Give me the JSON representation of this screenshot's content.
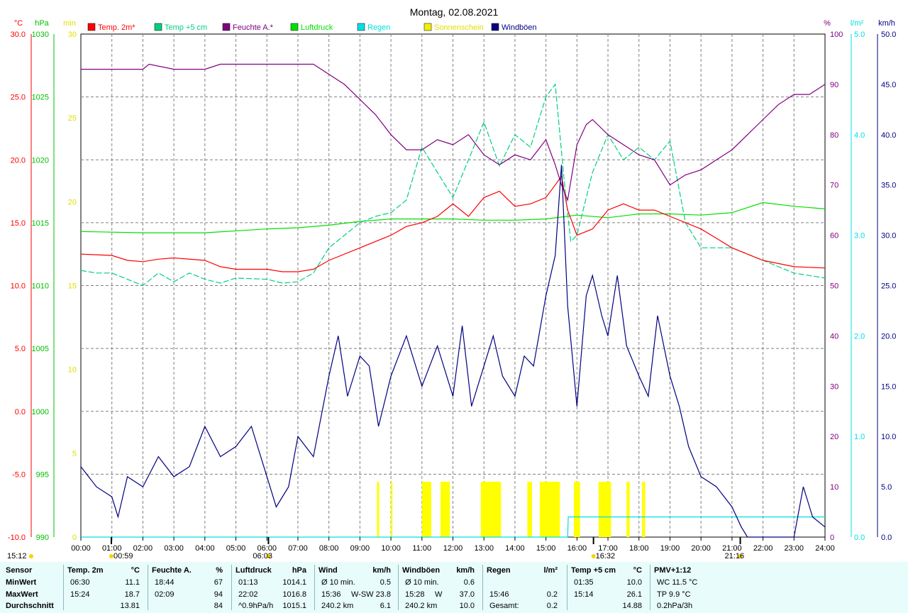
{
  "chart_data": {
    "type": "line",
    "title": "Montag, 02.08.2021",
    "x": {
      "range_hours": [
        0,
        24
      ],
      "ticks": [
        "00:00",
        "01:00",
        "02:00",
        "03:00",
        "04:00",
        "05:00",
        "06:00",
        "07:00",
        "08:00",
        "09:00",
        "10:00",
        "11:00",
        "12:00",
        "13:00",
        "14:00",
        "15:00",
        "16:00",
        "17:00",
        "18:00",
        "19:00",
        "20:00",
        "21:00",
        "22:00",
        "23:00",
        "24:00"
      ],
      "markers": [
        {
          "label": "15:12",
          "hour": null,
          "kind": "sun"
        },
        {
          "label": "00:59",
          "hour": 0.983,
          "kind": "moon"
        },
        {
          "label": "06:03",
          "hour": 6.05,
          "kind": "sun"
        },
        {
          "label": "16:32",
          "hour": 16.533,
          "kind": "moon"
        },
        {
          "label": "21:16",
          "hour": 21.267,
          "kind": "sun"
        }
      ]
    },
    "axes": {
      "temp": {
        "unit": "°C",
        "range": [
          -10,
          30
        ],
        "ticks": [
          "30.0",
          "25.0",
          "20.0",
          "15.0",
          "10.0",
          "5.0",
          "0.0",
          "-5.0",
          "-10.0"
        ],
        "color": "#ff0000"
      },
      "pressure": {
        "unit": "hPa",
        "range": [
          990,
          1030
        ],
        "ticks": [
          "1030",
          "1025",
          "1020",
          "1015",
          "1010",
          "1005",
          "1000",
          "995",
          "990"
        ],
        "color": "#00c000"
      },
      "sun": {
        "unit": "min",
        "range": [
          0,
          30
        ],
        "ticks": [
          "30",
          "25",
          "20",
          "15",
          "10",
          "5",
          "0"
        ],
        "color": "#e0e000"
      },
      "humidity": {
        "unit": "%",
        "range": [
          0,
          100
        ],
        "ticks": [
          "100",
          "90",
          "80",
          "70",
          "60",
          "50",
          "40",
          "30",
          "20",
          "10",
          "0"
        ],
        "color": "#800080"
      },
      "rain": {
        "unit": "l/m²",
        "range": [
          0,
          5
        ],
        "ticks": [
          "5.0",
          "4.0",
          "3.0",
          "2.0",
          "1.0",
          "0.0"
        ],
        "color": "#00e0e0"
      },
      "wind": {
        "unit": "km/h",
        "range": [
          0,
          50
        ],
        "ticks": [
          "50.0",
          "45.0",
          "40.0",
          "35.0",
          "30.0",
          "25.0",
          "20.0",
          "15.0",
          "10.0",
          "5.0",
          "0.0"
        ],
        "color": "#000080"
      }
    },
    "legend": [
      {
        "name": "Temp. 2m*",
        "color": "#ff0000"
      },
      {
        "name": "Temp +5 cm",
        "color": "#00d080"
      },
      {
        "name": "Feuchte A.*",
        "color": "#800080"
      },
      {
        "name": "Luftdruck",
        "color": "#00e000"
      },
      {
        "name": "Regen",
        "color": "#00e0e0"
      },
      {
        "name": "Sonnenschein",
        "color": "#f0f000"
      },
      {
        "name": "Windböen",
        "color": "#000080"
      }
    ],
    "grid": true,
    "series": [
      {
        "name": "Temp. 2m*",
        "axis": "temp",
        "hours": [
          0,
          1,
          1.5,
          2,
          2.5,
          3,
          4,
          4.5,
          5,
          6,
          6.5,
          7,
          7.5,
          8,
          9,
          10,
          10.5,
          11,
          11.5,
          12,
          12.5,
          13,
          13.5,
          14,
          14.5,
          15,
          15.3,
          15.5,
          15.7,
          16,
          16.5,
          17,
          17.5,
          18,
          18.5,
          19,
          20,
          21,
          22,
          23,
          24
        ],
        "values": [
          12.5,
          12.4,
          12,
          11.9,
          12.1,
          12.2,
          12,
          11.5,
          11.3,
          11.3,
          11.1,
          11.1,
          11.3,
          12,
          13,
          14,
          14.7,
          15,
          15.5,
          16.5,
          15.5,
          17,
          17.5,
          16.3,
          16.5,
          17,
          18,
          18.7,
          16,
          14,
          14.5,
          16,
          16.5,
          16,
          16,
          15.5,
          14.5,
          13,
          12,
          11.5,
          11.4
        ]
      },
      {
        "name": "Temp +5 cm",
        "axis": "temp",
        "hours": [
          0,
          0.5,
          1,
          1.5,
          2,
          2.5,
          3,
          3.5,
          4,
          4.5,
          5,
          6,
          6.5,
          7,
          7.5,
          8,
          8.5,
          9,
          9.5,
          10,
          10.5,
          11,
          11.5,
          12,
          12.5,
          13,
          13.5,
          14,
          14.5,
          15,
          15.3,
          15.6,
          15.8,
          16,
          16.5,
          17,
          17.5,
          18,
          18.5,
          19,
          19.5,
          20,
          21,
          22,
          23,
          24
        ],
        "values": [
          11.2,
          11,
          11,
          10.5,
          10,
          11,
          10.3,
          11,
          10.5,
          10.2,
          10.6,
          10.5,
          10.2,
          10.3,
          11,
          13,
          14,
          15,
          15.5,
          15.8,
          16.8,
          21,
          19,
          17,
          20,
          23,
          19.5,
          22,
          21,
          25,
          26,
          18,
          13.5,
          14,
          19,
          22,
          20,
          21,
          20,
          21.5,
          15,
          13,
          13,
          12,
          11,
          10.6
        ]
      },
      {
        "name": "Feuchte A.*",
        "axis": "humidity",
        "hours": [
          0,
          1,
          2,
          2.2,
          3,
          4,
          4.5,
          5,
          6,
          7,
          7.5,
          8,
          8.5,
          9,
          9.5,
          10,
          10.5,
          11,
          11.5,
          12,
          12.5,
          13,
          13.5,
          14,
          14.5,
          15,
          15.3,
          15.5,
          15.7,
          16,
          16.3,
          16.5,
          17,
          17.5,
          18,
          18.5,
          19,
          19.5,
          20,
          20.5,
          21,
          21.5,
          22,
          22.5,
          23,
          23.5,
          24
        ],
        "values": [
          93,
          93,
          93,
          94,
          93,
          93,
          94,
          94,
          94,
          94,
          94,
          92,
          90,
          87,
          84,
          80,
          77,
          77,
          79,
          78,
          80,
          76,
          74,
          76,
          75,
          79,
          74,
          70,
          67,
          78,
          82,
          83,
          80,
          78,
          76,
          75,
          70,
          72,
          73,
          75,
          77,
          80,
          83,
          86,
          88,
          88,
          90
        ]
      },
      {
        "name": "Luftdruck",
        "axis": "pressure",
        "hours": [
          0,
          2,
          4,
          6,
          7,
          8,
          9,
          10,
          11,
          12,
          13,
          14,
          15,
          16,
          17,
          18,
          19,
          20,
          21,
          22,
          23,
          24
        ],
        "values": [
          1014.3,
          1014.2,
          1014.2,
          1014.5,
          1014.6,
          1014.8,
          1015.1,
          1015.3,
          1015.3,
          1015.3,
          1015.2,
          1015.2,
          1015.3,
          1015.6,
          1015.4,
          1015.7,
          1015.7,
          1015.6,
          1015.8,
          1016.6,
          1016.3,
          1016.1
        ]
      },
      {
        "name": "Windböen",
        "axis": "wind",
        "hours": [
          0,
          0.5,
          1,
          1.2,
          1.5,
          2,
          2.5,
          3,
          3.5,
          4,
          4.5,
          5,
          5.5,
          6,
          6.3,
          6.7,
          7,
          7.5,
          8,
          8.3,
          8.6,
          9,
          9.3,
          9.6,
          10,
          10.5,
          11,
          11.5,
          12,
          12.3,
          12.6,
          13,
          13.3,
          13.6,
          14,
          14.3,
          14.6,
          15,
          15.3,
          15.5,
          15.7,
          16,
          16.3,
          16.5,
          16.8,
          17,
          17.3,
          17.6,
          18,
          18.3,
          18.6,
          19,
          19.3,
          19.6,
          20,
          20.5,
          21,
          21.3,
          21.5,
          22,
          22.5,
          23,
          23.3,
          23.6,
          24
        ],
        "values": [
          7,
          5,
          4,
          2,
          6,
          5,
          8,
          6,
          7,
          11,
          8,
          9,
          11,
          6,
          3,
          5,
          10,
          8,
          16,
          20,
          14,
          18,
          17,
          11,
          16,
          20,
          15,
          19,
          14,
          21,
          13,
          17,
          20,
          16,
          14,
          18,
          17,
          24,
          28,
          37,
          23,
          13,
          24,
          26,
          22,
          20,
          26,
          19,
          16,
          14,
          22,
          16,
          13,
          9,
          6,
          5,
          3,
          1,
          0,
          0,
          0,
          0,
          5,
          2,
          1
        ]
      },
      {
        "name": "Regen",
        "axis": "rain",
        "hours": [
          0,
          15.7,
          15.72,
          24
        ],
        "values": [
          0,
          0,
          0.2,
          0.2
        ]
      },
      {
        "name": "Sonnenschein",
        "axis": "sun",
        "type": "bar",
        "intervals": [
          [
            9.55,
            9.62
          ],
          [
            10,
            10.05
          ],
          [
            11,
            11.3
          ],
          [
            11.6,
            11.9
          ],
          [
            12.9,
            13.55
          ],
          [
            14.4,
            14.55
          ],
          [
            14.8,
            15.45
          ],
          [
            15.9,
            16.1
          ],
          [
            16.7,
            17.1
          ],
          [
            17.6,
            17.7
          ],
          [
            18.1,
            18.2
          ]
        ],
        "value": 3.3
      }
    ]
  },
  "stats": {
    "row_labels": [
      "Sensor",
      "MinWert",
      "MaxWert",
      "Durchschnitt"
    ],
    "columns": [
      {
        "head": "Temp. 2m",
        "unit": "°C",
        "min_time": "06:30",
        "min_val": "11.1",
        "max_time": "15:24",
        "max_val": "18.7",
        "avg_extra": "",
        "avg_val": "13.81"
      },
      {
        "head": "Feuchte A.",
        "unit": "%",
        "min_time": "18:44",
        "min_val": "67",
        "max_time": "02:09",
        "max_val": "94",
        "avg_extra": "",
        "avg_val": "84"
      },
      {
        "head": "Luftdruck",
        "unit": "hPa",
        "min_time": "01:13",
        "min_val": "1014.1",
        "max_time": "22:02",
        "max_val": "1016.8",
        "avg_extra": "^0.9hPa/h",
        "avg_val": "1015.1"
      },
      {
        "head": "Wind",
        "unit": "km/h",
        "min_time": "Ø 10 min.",
        "min_val": "0.5",
        "max_time": "15:36",
        "max_extra": "W-SW",
        "max_val": "23.8",
        "avg_extra": "240.2 km",
        "avg_val": "6.1"
      },
      {
        "head": "Windböen",
        "unit": "km/h",
        "min_time": "Ø 10 min.",
        "min_val": "0.6",
        "max_time": "15:28",
        "max_extra": "W",
        "max_val": "37.0",
        "avg_extra": "240.2 km",
        "avg_val": "10.0"
      },
      {
        "head": "Regen",
        "unit": "l/m²",
        "min_time": "",
        "min_val": "",
        "max_time": "15:46",
        "max_val": "0.2",
        "avg_extra": "Gesamt:",
        "avg_val": "0.2"
      },
      {
        "head": "Temp +5 cm",
        "unit": "°C",
        "min_time": "01:35",
        "min_val": "10.0",
        "max_time": "15:14",
        "max_val": "26.1",
        "avg_extra": "",
        "avg_val": "14.88"
      },
      {
        "head": "PMV+1:12",
        "unit": "",
        "min_time": "WC 11.5 °C",
        "min_val": "",
        "max_time": "TP 9.9 °C",
        "max_val": "",
        "avg_extra": "0.2hPa/3h",
        "avg_val": ""
      }
    ]
  }
}
